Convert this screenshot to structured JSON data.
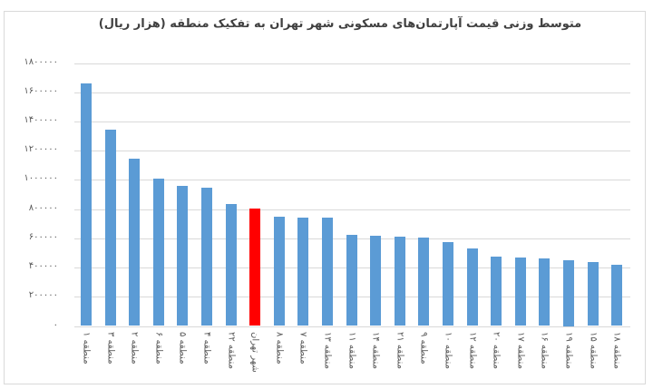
{
  "chart_data": {
    "type": "bar",
    "title": "متوسط وزنی قیمت آپارتمان‌های مسکونی شهر تهران به تفکیک منطقه (هزار ریال)",
    "xlabel": "",
    "ylabel": "",
    "ylim": [
      0,
      1800000
    ],
    "yticks": [
      0,
      200000,
      400000,
      600000,
      800000,
      1000000,
      1200000,
      1400000,
      1600000,
      1800000
    ],
    "ytick_labels": [
      "۰",
      "۲۰۰۰۰۰",
      "۴۰۰۰۰۰",
      "۶۰۰۰۰۰",
      "۸۰۰۰۰۰",
      "۱۰۰۰۰۰۰",
      "۱۲۰۰۰۰۰",
      "۱۴۰۰۰۰۰",
      "۱۶۰۰۰۰۰",
      "۱۸۰۰۰۰۰"
    ],
    "grid": true,
    "legend": "none",
    "categories": [
      "منطقه ۱",
      "منطقه ۳",
      "منطقه ۲",
      "منطقه ۶",
      "منطقه ۵",
      "منطقه ۴",
      "منطقه ۲۲",
      "شهر تهران",
      "منطقه ۸",
      "منطقه ۷",
      "منطقه ۱۳",
      "منطقه ۱۱",
      "منطقه ۱۴",
      "منطقه ۲۱",
      "منطقه ۹",
      "منطقه ۱۰",
      "منطقه ۱۲",
      "منطقه ۲۰",
      "منطقه ۱۷",
      "منطقه ۱۶",
      "منطقه ۱۹",
      "منطقه ۱۵",
      "منطقه ۱۸"
    ],
    "values": [
      1660000,
      1342000,
      1143000,
      1008000,
      958000,
      948000,
      833000,
      806000,
      747000,
      743000,
      741000,
      623000,
      620000,
      614000,
      608000,
      577000,
      530000,
      475000,
      471000,
      462000,
      450000,
      436000,
      421000
    ],
    "colors": {
      "default": "#5B9BD5",
      "highlight": "#FF0000",
      "highlight_category": "شهر تهران"
    }
  }
}
